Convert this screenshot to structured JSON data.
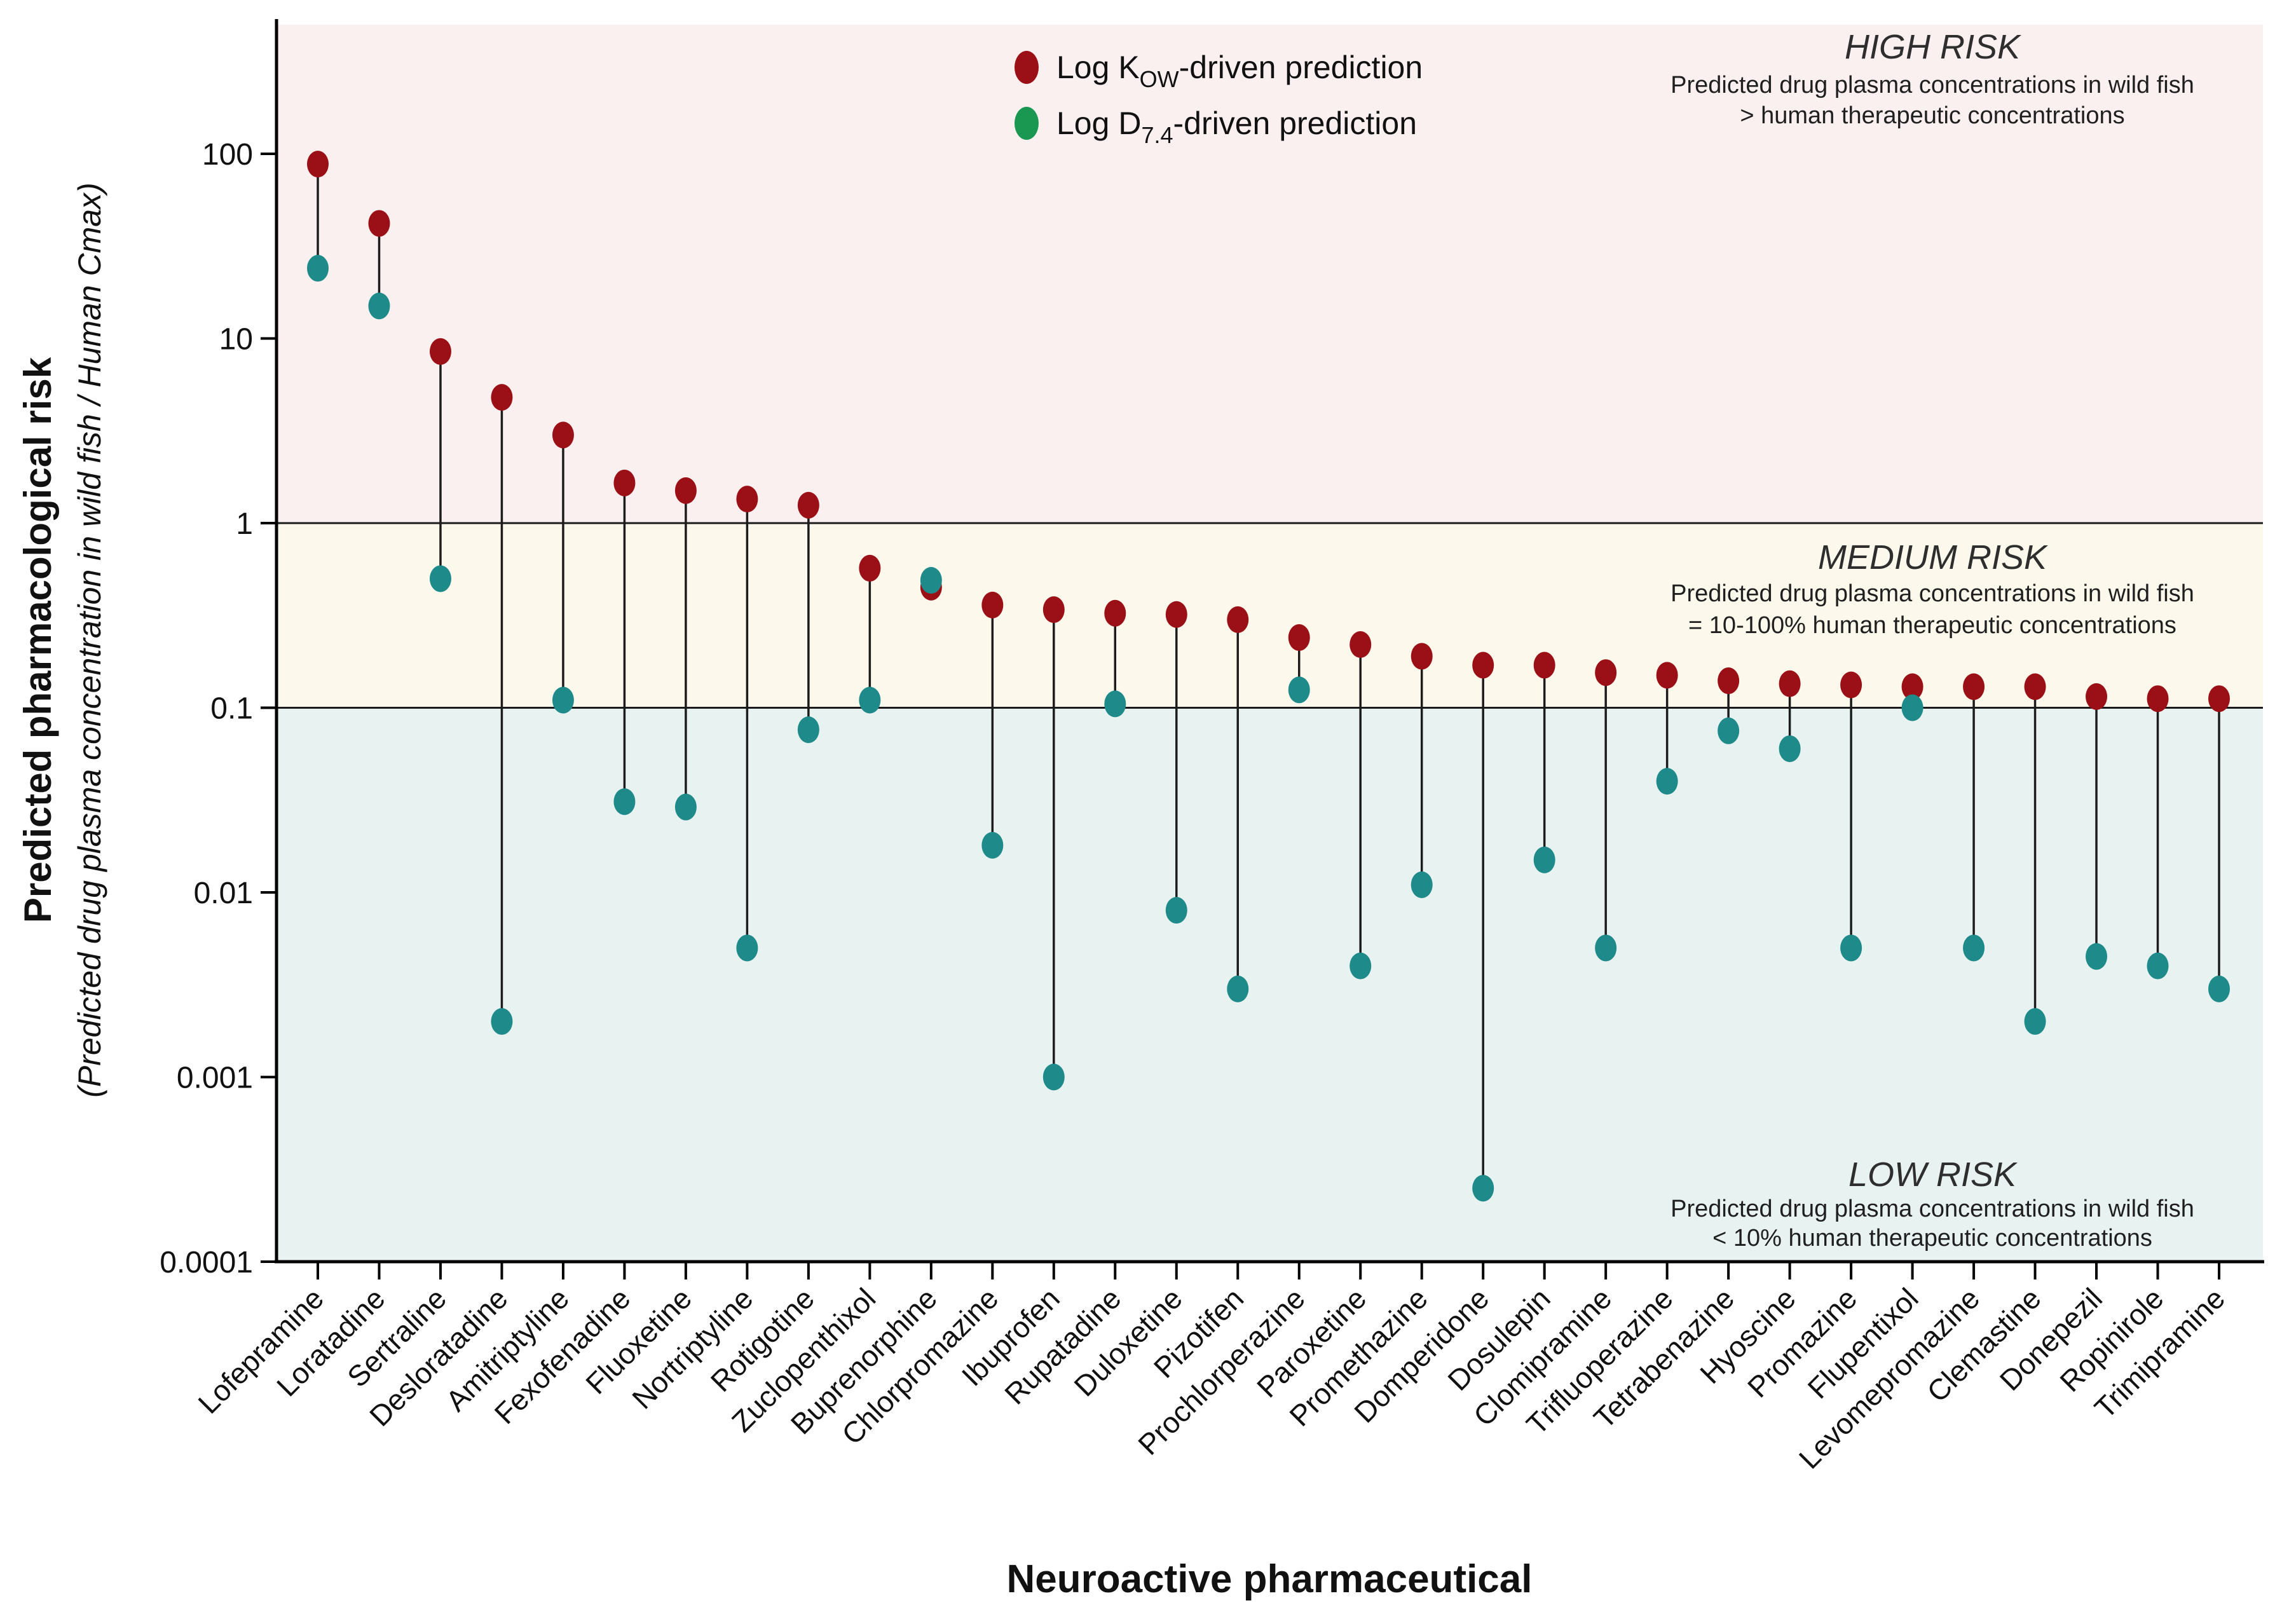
{
  "chart_data": {
    "type": "dumbbell",
    "xlabel": "Neuroactive pharmaceutical",
    "ylabel_main": "Predicted pharmacological risk",
    "ylabel_sub": "(Predicted drug plasma concentration in wild fish / Human Cmax)",
    "y_scale": "log",
    "ylim": [
      0.0001,
      500
    ],
    "y_ticks": [
      100,
      10,
      1,
      0.1,
      0.01,
      0.001,
      0.0001
    ],
    "y_tick_labels": [
      "100",
      "10",
      "1",
      "0.1",
      "0.01",
      "0.001",
      "0.0001"
    ],
    "grid": false,
    "legend_position": "top-center",
    "categories": [
      "Lofepramine",
      "Loratadine",
      "Sertraline",
      "Desloratadine",
      "Amitriptyline",
      "Fexofenadine",
      "Fluoxetine",
      "Nortriptyline",
      "Rotigotine",
      "Zuclopenthixol",
      "Buprenorphine",
      "Chlorpromazine",
      "Ibuprofen",
      "Rupatadine",
      "Duloxetine",
      "Pizotifen",
      "Prochlorperazine",
      "Paroxetine",
      "Promethazine",
      "Domperidone",
      "Dosulepin",
      "Clomipramine",
      "Trifluoperazine",
      "Tetrabenazine",
      "Hyoscine",
      "Promazine",
      "Flupentixol",
      "Levomepromazine",
      "Clemastine",
      "Donepezil",
      "Ropinirole",
      "Trimipramine"
    ],
    "series": [
      {
        "name": "Log KOW-driven prediction",
        "legend": {
          "prefix": "Log K",
          "sub": "OW",
          "suffix": "-driven prediction"
        },
        "color": "#9b1016",
        "legend_color": "#9b1016",
        "values": [
          88,
          42,
          8.5,
          4.8,
          3.0,
          1.65,
          1.5,
          1.35,
          1.25,
          0.57,
          0.45,
          0.36,
          0.34,
          0.325,
          0.32,
          0.3,
          0.24,
          0.22,
          0.19,
          0.17,
          0.17,
          0.155,
          0.15,
          0.14,
          0.135,
          0.133,
          0.13,
          0.13,
          0.13,
          0.115,
          0.112,
          0.112
        ]
      },
      {
        "name": "Log D7.4-driven prediction",
        "legend": {
          "prefix": "Log D",
          "sub": "7.4",
          "suffix": "-driven prediction"
        },
        "color": "#1f8a8a",
        "legend_color": "#1a9751",
        "values": [
          24,
          15,
          0.5,
          0.002,
          0.11,
          0.031,
          0.029,
          0.005,
          0.076,
          0.11,
          0.49,
          0.018,
          0.001,
          0.105,
          0.008,
          0.003,
          0.125,
          0.004,
          0.011,
          0.00025,
          0.015,
          0.005,
          0.04,
          0.075,
          0.06,
          0.005,
          0.1,
          0.005,
          0.002,
          0.0045,
          0.004,
          0.003
        ]
      }
    ],
    "zones": [
      {
        "id": "high",
        "title": "HIGH RISK",
        "line1": "Predicted drug plasma concentrations in wild fish",
        "line2": "> human therapeutic concentrations",
        "range": [
          1,
          500
        ],
        "bg": "#faf0f0"
      },
      {
        "id": "medium",
        "title": "MEDIUM RISK",
        "line1": "Predicted drug plasma concentrations in wild fish",
        "line2": "= 10-100% human therapeutic concentrations",
        "range": [
          0.1,
          1
        ],
        "bg": "#fcf9ec"
      },
      {
        "id": "low",
        "title": "LOW RISK",
        "line1": "Predicted drug plasma concentrations in wild fish",
        "line2": "< 10% human therapeutic concentrations",
        "range": [
          0.0001,
          0.1
        ],
        "bg": "#e8f2f1"
      }
    ],
    "boundary_lines": [
      1,
      0.1
    ]
  }
}
